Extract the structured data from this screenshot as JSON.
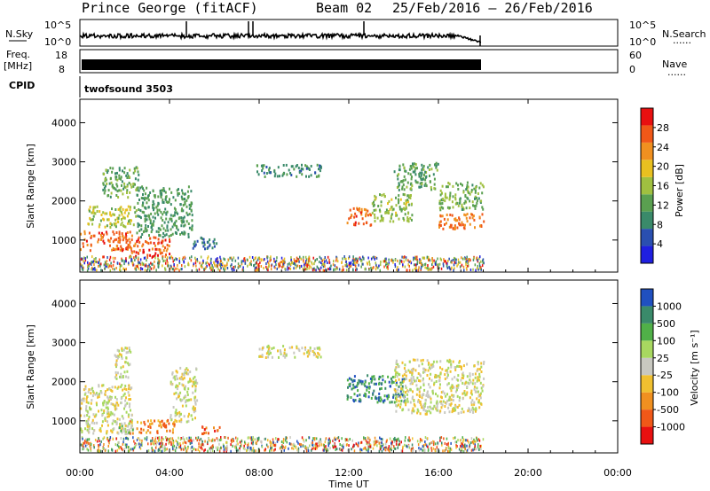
{
  "header": {
    "title": "Prince George (fitACF)",
    "beam": "Beam 02",
    "date_range": "25/Feb/2016 – 26/Feb/2016"
  },
  "side_labels": {
    "nsky": "N.Sky",
    "freq_line1": "Freq.",
    "freq_line2": "[MHz]",
    "cpid": "CPID",
    "nsearch": "N.Search",
    "nave": "Nave",
    "dots": "......"
  },
  "panels": {
    "noise": {
      "left_ticks": [
        "10^5",
        "10^0"
      ],
      "right_ticks": [
        "10^5",
        "10^0"
      ]
    },
    "freq": {
      "left_ticks": [
        "18",
        "8"
      ],
      "right_ticks": [
        "60",
        "0"
      ]
    },
    "cpid": {
      "label": "twofsound 3503"
    }
  },
  "colors": {
    "power": [
      "#1f1fe0",
      "#2a4fb0",
      "#3a8a6a",
      "#5aa050",
      "#a0c040",
      "#e8c020",
      "#f09020",
      "#f05818",
      "#e81010"
    ],
    "velocity": [
      "#e81010",
      "#f05818",
      "#f09020",
      "#f0c030",
      "#c8c8c0",
      "#a8d860",
      "#50b048",
      "#3a8a6a",
      "#2050c0"
    ]
  },
  "chart_data": [
    {
      "type": "heatmap",
      "name": "power",
      "ylabel": "Slant Range [km]",
      "ylim": [
        180,
        4600
      ],
      "yticks": [
        1000,
        2000,
        3000,
        4000
      ],
      "colorbar_label": "Power [dB]",
      "colorbar_ticks": [
        "4",
        "8",
        "12",
        "16",
        "20",
        "24",
        "28"
      ],
      "colorbar_range": [
        0,
        32
      ],
      "blobs": [
        {
          "t0": 0.0,
          "t1": 2.3,
          "r0": 750,
          "r1": 1250,
          "v": 27
        },
        {
          "t0": 0.3,
          "t1": 2.5,
          "r0": 1350,
          "r1": 1900,
          "v": 17
        },
        {
          "t0": 1.0,
          "t1": 2.6,
          "r0": 2100,
          "r1": 2900,
          "v": 12
        },
        {
          "t0": 2.2,
          "t1": 4.0,
          "r0": 600,
          "r1": 1100,
          "v": 28
        },
        {
          "t0": 2.5,
          "t1": 5.0,
          "r0": 1100,
          "r1": 2400,
          "v": 10
        },
        {
          "t0": 5.0,
          "t1": 6.2,
          "r0": 800,
          "r1": 1100,
          "v": 7
        },
        {
          "t0": 7.8,
          "t1": 10.8,
          "r0": 2650,
          "r1": 2950,
          "v": 9
        },
        {
          "t0": 11.9,
          "t1": 13.0,
          "r0": 1400,
          "r1": 1850,
          "v": 27
        },
        {
          "t0": 13.0,
          "t1": 14.8,
          "r0": 1500,
          "r1": 2200,
          "v": 15
        },
        {
          "t0": 14.0,
          "t1": 16.0,
          "r0": 2300,
          "r1": 3000,
          "v": 11
        },
        {
          "t0": 16.0,
          "t1": 18.0,
          "r0": 1300,
          "r1": 1700,
          "v": 26
        },
        {
          "t0": 16.0,
          "t1": 18.0,
          "r0": 1800,
          "r1": 2500,
          "v": 13
        }
      ]
    },
    {
      "type": "heatmap",
      "name": "velocity",
      "ylabel": "Slant Range [km]",
      "ylim": [
        180,
        4600
      ],
      "yticks": [
        1000,
        2000,
        3000,
        4000
      ],
      "colorbar_label": "Velocity [m s⁻¹]",
      "colorbar_ticks": [
        "-1000",
        "-500",
        "-100",
        "-25",
        "25",
        "100",
        "500",
        "1000"
      ],
      "blobs": [
        {
          "t0": 0.0,
          "t1": 2.3,
          "r0": 700,
          "r1": 1950,
          "v": 4
        },
        {
          "t0": 1.5,
          "t1": 2.3,
          "r0": 2100,
          "r1": 2900,
          "v": 4
        },
        {
          "t0": 2.2,
          "t1": 4.2,
          "r0": 700,
          "r1": 1050,
          "v": 2
        },
        {
          "t0": 1.6,
          "t1": 2.4,
          "r0": 700,
          "r1": 1000,
          "v": 5
        },
        {
          "t0": 4.0,
          "t1": 5.2,
          "r0": 1000,
          "r1": 2400,
          "v": 4
        },
        {
          "t0": 5.4,
          "t1": 6.3,
          "r0": 700,
          "r1": 900,
          "v": 1
        },
        {
          "t0": 7.8,
          "t1": 10.8,
          "r0": 2650,
          "r1": 2950,
          "v": 4
        },
        {
          "t0": 11.9,
          "t1": 14.5,
          "r0": 1500,
          "r1": 2200,
          "v": 7
        },
        {
          "t0": 14.0,
          "t1": 18.0,
          "r0": 1200,
          "r1": 2600,
          "v": 4
        }
      ]
    }
  ],
  "x_axis": {
    "label": "Time UT",
    "ticks": [
      "00:00",
      "04:00",
      "08:00",
      "12:00",
      "16:00",
      "20:00",
      "00:00"
    ],
    "range_hours": [
      0,
      24
    ]
  }
}
